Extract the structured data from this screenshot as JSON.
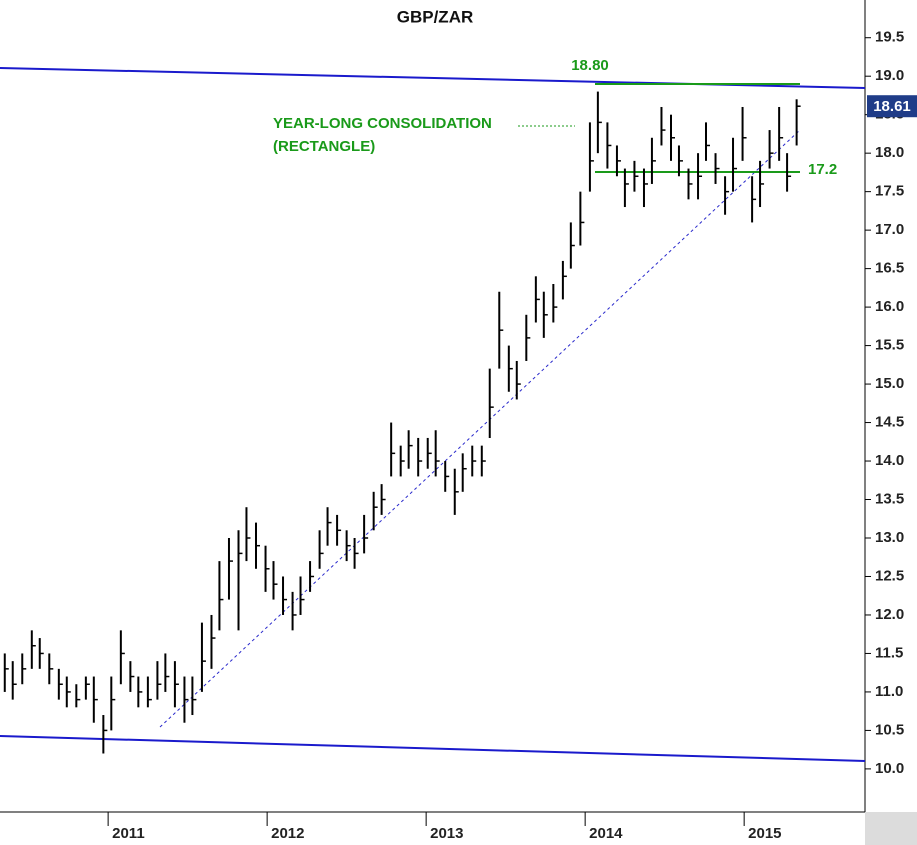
{
  "chart_data": {
    "type": "ohlc",
    "title": "GBP/ZAR",
    "x": [
      2010.35,
      2010.4,
      2010.46,
      2010.52,
      2010.57,
      2010.63,
      2010.69,
      2010.74,
      2010.8,
      2010.86,
      2010.91,
      2010.97,
      2011.02,
      2011.08,
      2011.14,
      2011.19,
      2011.25,
      2011.31,
      2011.36,
      2011.42,
      2011.48,
      2011.53,
      2011.59,
      2011.65,
      2011.7,
      2011.76,
      2011.82,
      2011.87,
      2011.93,
      2011.99,
      2012.04,
      2012.1,
      2012.16,
      2012.21,
      2012.27,
      2012.33,
      2012.38,
      2012.44,
      2012.5,
      2012.55,
      2012.61,
      2012.67,
      2012.72,
      2012.78,
      2012.84,
      2012.89,
      2012.95,
      2013.01,
      2013.06,
      2013.12,
      2013.18,
      2013.23,
      2013.29,
      2013.35,
      2013.4,
      2013.46,
      2013.52,
      2013.57,
      2013.63,
      2013.69,
      2013.74,
      2013.8,
      2013.86,
      2013.91,
      2013.97,
      2014.03,
      2014.08,
      2014.14,
      2014.2,
      2014.25,
      2014.31,
      2014.37,
      2014.42,
      2014.48,
      2014.54,
      2014.59,
      2014.65,
      2014.71,
      2014.76,
      2014.82,
      2014.88,
      2014.93,
      2014.99,
      2015.05,
      2015.1,
      2015.16,
      2015.22,
      2015.27,
      2015.33
    ],
    "high": [
      11.5,
      11.4,
      11.5,
      11.8,
      11.7,
      11.5,
      11.3,
      11.2,
      11.1,
      11.2,
      11.2,
      10.7,
      11.2,
      11.8,
      11.4,
      11.2,
      11.2,
      11.4,
      11.5,
      11.4,
      11.2,
      11.2,
      11.9,
      12.0,
      12.7,
      13.0,
      13.1,
      13.4,
      13.2,
      12.9,
      12.7,
      12.5,
      12.3,
      12.5,
      12.7,
      13.1,
      13.4,
      13.3,
      13.1,
      13.0,
      13.3,
      13.6,
      13.7,
      14.5,
      14.2,
      14.4,
      14.3,
      14.3,
      14.4,
      14.0,
      13.9,
      14.1,
      14.2,
      14.2,
      15.2,
      16.2,
      15.5,
      15.3,
      15.9,
      16.4,
      16.2,
      16.3,
      16.6,
      17.1,
      17.5,
      18.4,
      18.8,
      18.4,
      18.1,
      17.8,
      17.9,
      17.8,
      18.2,
      18.6,
      18.5,
      18.1,
      17.8,
      18.0,
      18.4,
      18.0,
      17.7,
      18.2,
      18.6,
      17.7,
      17.9,
      18.3,
      18.6,
      18.0,
      18.7
    ],
    "low": [
      11.0,
      10.9,
      11.1,
      11.3,
      11.3,
      11.1,
      10.9,
      10.8,
      10.8,
      10.9,
      10.6,
      10.2,
      10.5,
      11.1,
      11.0,
      10.8,
      10.8,
      10.9,
      11.0,
      10.8,
      10.6,
      10.7,
      11.0,
      11.3,
      11.8,
      12.2,
      11.8,
      12.7,
      12.6,
      12.3,
      12.2,
      12.0,
      11.8,
      12.0,
      12.3,
      12.6,
      12.9,
      12.9,
      12.7,
      12.6,
      12.8,
      13.1,
      13.3,
      13.8,
      13.8,
      13.9,
      13.8,
      13.9,
      13.8,
      13.6,
      13.3,
      13.6,
      13.8,
      13.8,
      14.3,
      15.2,
      14.9,
      14.8,
      15.3,
      15.8,
      15.6,
      15.8,
      16.1,
      16.5,
      16.8,
      17.5,
      18.0,
      17.8,
      17.7,
      17.3,
      17.5,
      17.3,
      17.6,
      18.1,
      17.9,
      17.7,
      17.4,
      17.4,
      17.9,
      17.6,
      17.2,
      17.5,
      17.9,
      17.1,
      17.3,
      17.8,
      17.9,
      17.5,
      18.1
    ],
    "close": [
      11.3,
      11.1,
      11.3,
      11.6,
      11.5,
      11.3,
      11.1,
      11.0,
      10.9,
      11.1,
      10.9,
      10.5,
      10.9,
      11.5,
      11.2,
      11.0,
      10.9,
      11.1,
      11.2,
      11.1,
      10.9,
      10.9,
      11.4,
      11.7,
      12.2,
      12.7,
      12.8,
      13.0,
      12.9,
      12.6,
      12.4,
      12.2,
      12.0,
      12.2,
      12.5,
      12.8,
      13.2,
      13.1,
      12.9,
      12.8,
      13.0,
      13.4,
      13.5,
      14.1,
      14.0,
      14.2,
      14.0,
      14.1,
      14.0,
      13.8,
      13.6,
      13.9,
      14.0,
      14.0,
      14.7,
      15.7,
      15.2,
      15.0,
      15.6,
      16.1,
      15.9,
      16.0,
      16.4,
      16.8,
      17.1,
      17.9,
      18.4,
      18.1,
      17.9,
      17.6,
      17.7,
      17.6,
      17.9,
      18.3,
      18.2,
      17.9,
      17.6,
      17.7,
      18.1,
      17.8,
      17.5,
      17.8,
      18.2,
      17.4,
      17.6,
      18.0,
      18.2,
      17.7,
      18.61
    ],
    "color": "#000000",
    "xlim": [
      2010.32,
      2015.76
    ],
    "xticks": [
      2011,
      2012,
      2013,
      2014,
      2015
    ],
    "ylim": [
      9.44,
      19.99
    ],
    "yticks": [
      {
        "value": 10,
        "label": "10.0"
      },
      {
        "value": 10.5,
        "label": "10.5"
      },
      {
        "value": 11,
        "label": "11.0"
      },
      {
        "value": 11.5,
        "label": "11.5"
      },
      {
        "value": 12,
        "label": "12.0"
      },
      {
        "value": 12.5,
        "label": "12.5"
      },
      {
        "value": 13,
        "label": "13.0"
      },
      {
        "value": 13.5,
        "label": "13.5"
      },
      {
        "value": 14,
        "label": "14.0"
      },
      {
        "value": 14.5,
        "label": "14.5"
      },
      {
        "value": 15,
        "label": "15.0"
      },
      {
        "value": 15.5,
        "label": "15.5"
      },
      {
        "value": 16,
        "label": "16.0"
      },
      {
        "value": 16.5,
        "label": "16.5"
      },
      {
        "value": 17,
        "label": "17.0"
      },
      {
        "value": 17.5,
        "label": "17.5"
      },
      {
        "value": 18,
        "label": "18.0"
      },
      {
        "value": 18.5,
        "label": "18.5"
      },
      {
        "value": 19,
        "label": "19.0"
      },
      {
        "value": 19.5,
        "label": "19.5"
      }
    ],
    "annotations": [
      "18.80",
      "YEAR-LONG CONSOLIDATION",
      "(RECTANGLE)",
      "17.2"
    ]
  }
}
